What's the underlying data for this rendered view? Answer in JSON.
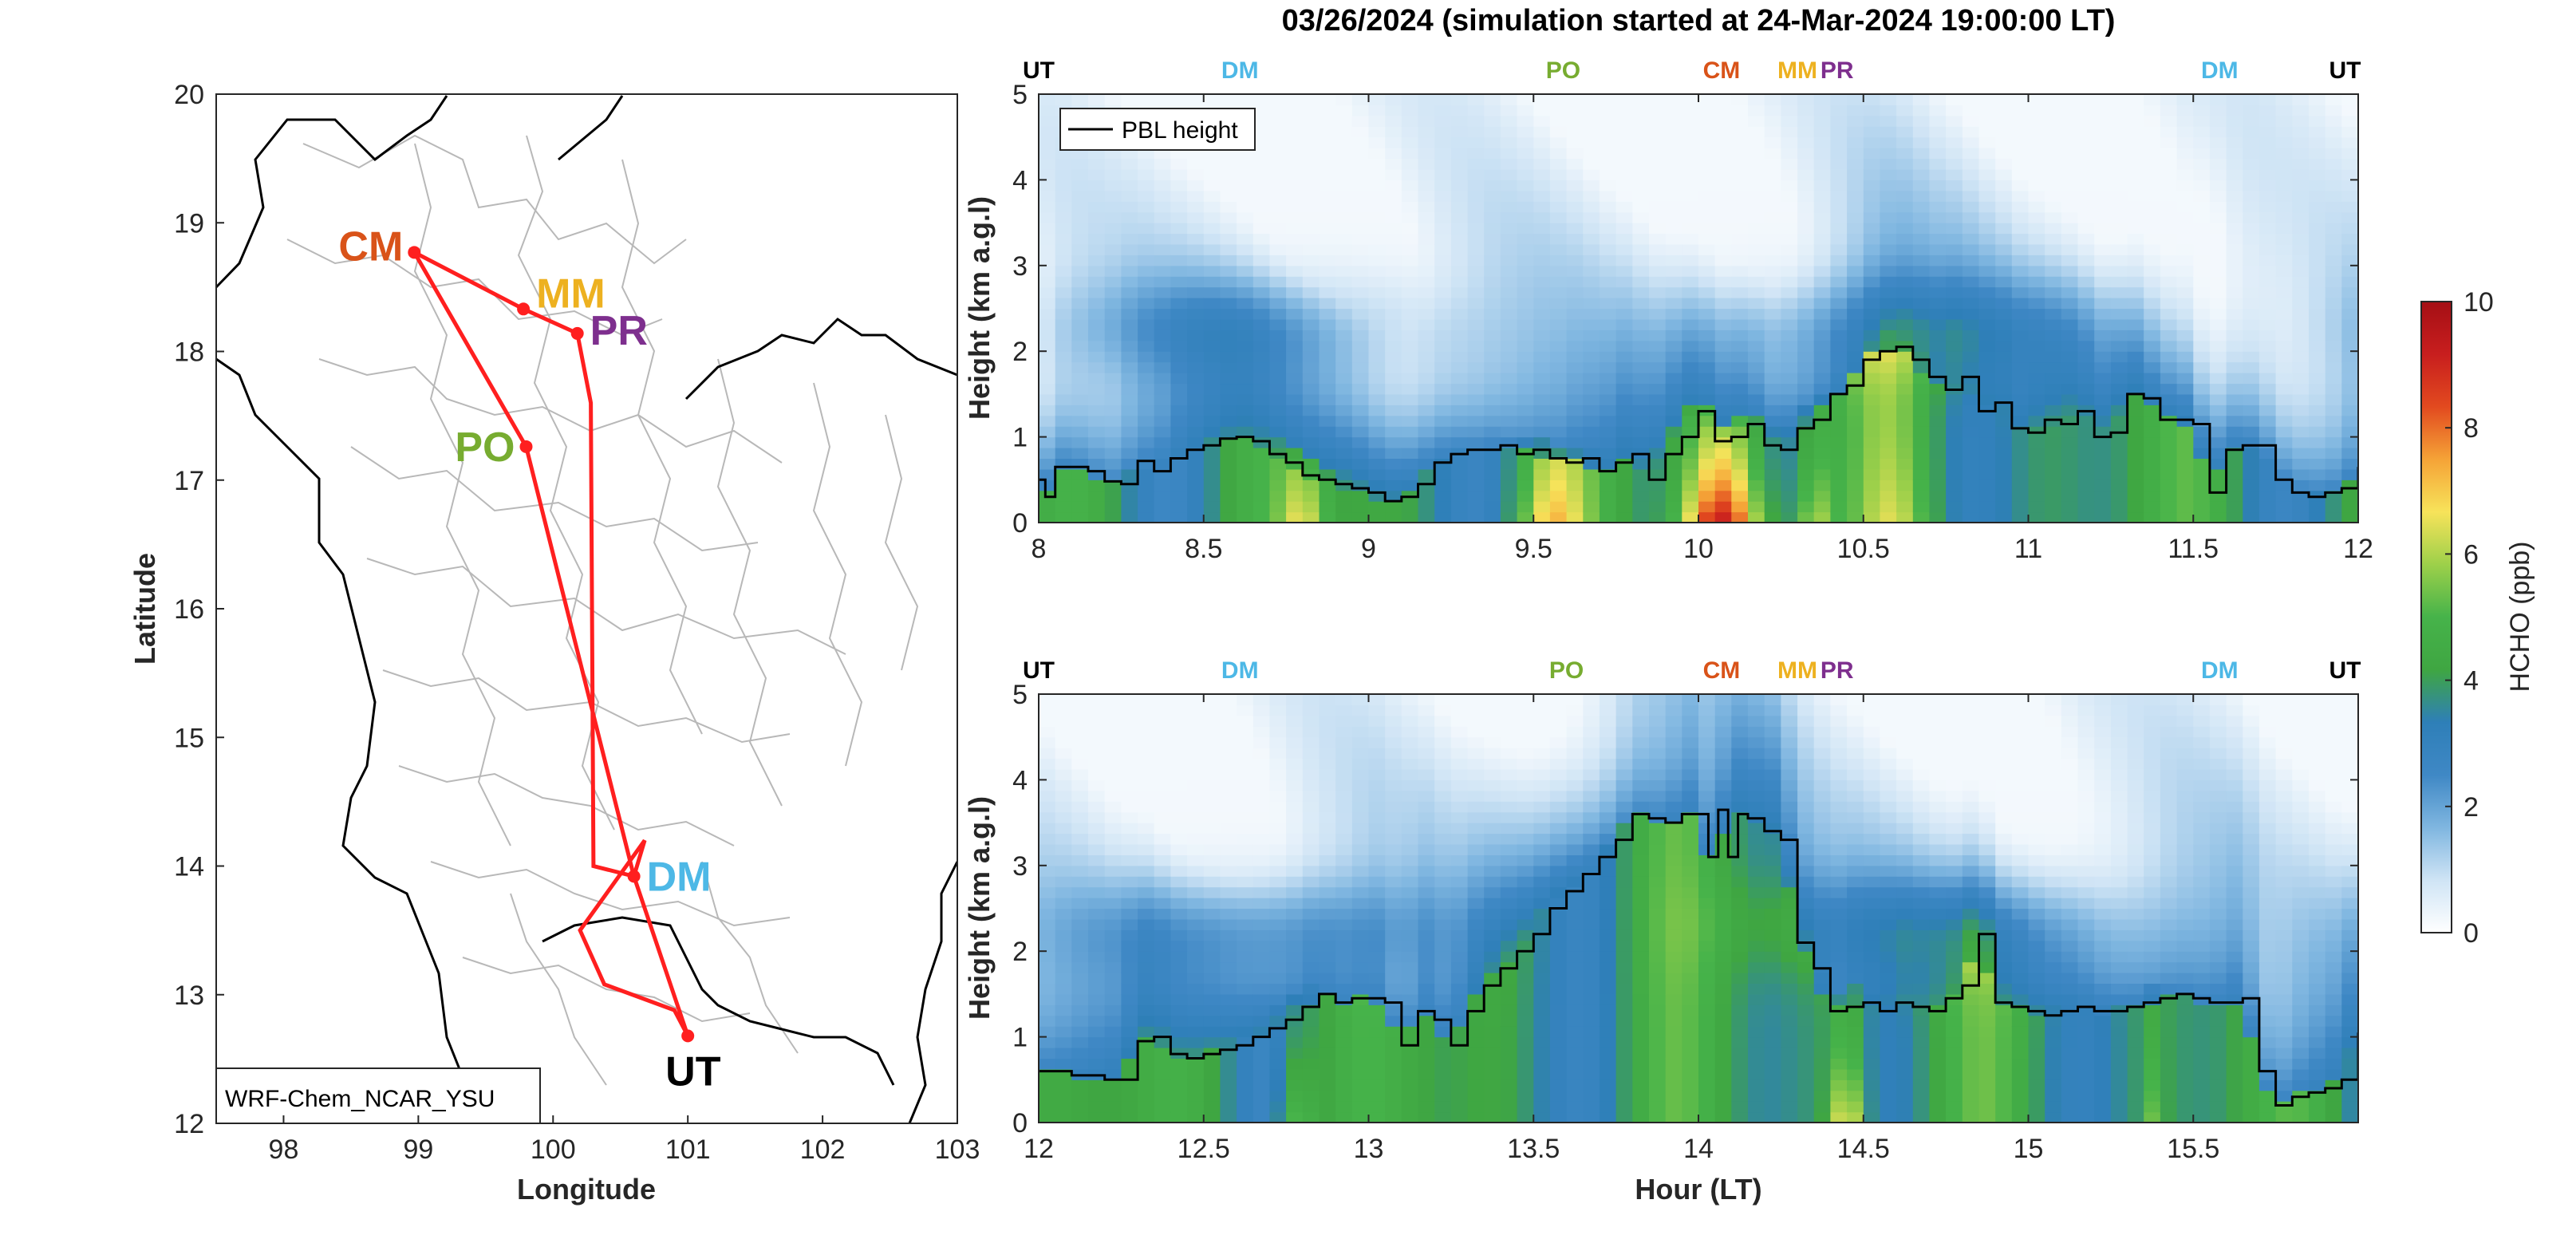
{
  "colors": {
    "route": "#ff1f1f",
    "UT": "#000000",
    "DM": "#4db8e6",
    "PO": "#77ac30",
    "CM": "#d95319",
    "MM": "#edb120",
    "PR": "#7e2f8e",
    "pbl_line": "#000000",
    "colormap": [
      "#ffffff",
      "#cfe4f5",
      "#7fb6e0",
      "#3f88c5",
      "#2e7fb8",
      "#3fa642",
      "#46b34a",
      "#9dd04a",
      "#f7e35a",
      "#f5a337",
      "#e24a1f",
      "#c81e1e",
      "#a50f15"
    ]
  },
  "chart_data": [
    {
      "type": "map",
      "xlabel": "Longitude",
      "ylabel": "Latitude",
      "xlim": [
        97.5,
        103
      ],
      "ylim": [
        12,
        20
      ],
      "xticks": [
        "98",
        "99",
        "100",
        "101",
        "102",
        "103"
      ],
      "yticks": [
        "12",
        "13",
        "14",
        "15",
        "16",
        "17",
        "18",
        "19",
        "20"
      ],
      "model_label": "WRF-Chem_NCAR_YSU",
      "sites": [
        {
          "code": "CM",
          "lon": 98.97,
          "lat": 18.77
        },
        {
          "code": "MM",
          "lon": 99.78,
          "lat": 18.33
        },
        {
          "code": "PR",
          "lon": 100.18,
          "lat": 18.14
        },
        {
          "code": "PO",
          "lon": 99.8,
          "lat": 17.26
        },
        {
          "code": "DM",
          "lon": 100.6,
          "lat": 13.92
        },
        {
          "code": "UT",
          "lon": 101.0,
          "lat": 12.68
        }
      ],
      "route": [
        [
          101.0,
          12.68
        ],
        [
          100.6,
          13.92
        ],
        [
          99.8,
          17.26
        ],
        [
          98.97,
          18.77
        ],
        [
          99.78,
          18.33
        ],
        [
          100.18,
          18.14
        ],
        [
          100.28,
          17.6
        ],
        [
          100.3,
          14.0
        ],
        [
          100.6,
          13.92
        ],
        [
          100.68,
          14.2
        ],
        [
          100.2,
          13.5
        ],
        [
          100.38,
          13.08
        ],
        [
          100.9,
          12.88
        ],
        [
          101.0,
          12.68
        ]
      ]
    },
    {
      "type": "heatmap",
      "title": "03/26/2024 (simulation started at 24-Mar-2024 19:00:00 LT)",
      "xlim": [
        8,
        12
      ],
      "ylim": [
        0,
        5
      ],
      "ylabel": "Height (km a.g.l)",
      "xticks": [
        "8",
        "8.5",
        "9",
        "9.5",
        "10",
        "10.5",
        "11",
        "11.5",
        "12"
      ],
      "yticks": [
        "0",
        "1",
        "2",
        "3",
        "4",
        "5"
      ],
      "legend": "PBL height",
      "site_markers": [
        {
          "code": "UT",
          "hour": 8.0
        },
        {
          "code": "DM",
          "hour": 8.61
        },
        {
          "code": "PO",
          "hour": 9.59
        },
        {
          "code": "CM",
          "hour": 10.07
        },
        {
          "code": "MM",
          "hour": 10.3
        },
        {
          "code": "PR",
          "hour": 10.42
        },
        {
          "code": "DM",
          "hour": 11.58
        },
        {
          "code": "UT",
          "hour": 11.96
        }
      ],
      "pbl_height": {
        "hour": [
          8.0,
          8.02,
          8.05,
          8.1,
          8.15,
          8.2,
          8.25,
          8.3,
          8.35,
          8.4,
          8.45,
          8.5,
          8.55,
          8.6,
          8.65,
          8.7,
          8.75,
          8.8,
          8.85,
          8.9,
          8.95,
          9.0,
          9.05,
          9.1,
          9.15,
          9.2,
          9.25,
          9.3,
          9.35,
          9.4,
          9.45,
          9.5,
          9.55,
          9.6,
          9.65,
          9.7,
          9.75,
          9.8,
          9.85,
          9.9,
          9.95,
          10.0,
          10.05,
          10.1,
          10.15,
          10.2,
          10.25,
          10.3,
          10.35,
          10.4,
          10.45,
          10.5,
          10.55,
          10.6,
          10.65,
          10.7,
          10.75,
          10.8,
          10.85,
          10.9,
          10.95,
          11.0,
          11.05,
          11.1,
          11.15,
          11.2,
          11.25,
          11.3,
          11.35,
          11.4,
          11.45,
          11.5,
          11.55,
          11.6,
          11.65,
          11.7,
          11.75,
          11.8,
          11.85,
          11.9,
          11.95,
          12.0
        ],
        "km": [
          0.5,
          0.3,
          0.65,
          0.65,
          0.6,
          0.48,
          0.45,
          0.72,
          0.6,
          0.75,
          0.85,
          0.9,
          0.98,
          1.0,
          0.95,
          0.8,
          0.7,
          0.55,
          0.5,
          0.45,
          0.4,
          0.35,
          0.25,
          0.3,
          0.45,
          0.7,
          0.8,
          0.85,
          0.85,
          0.9,
          0.8,
          0.85,
          0.75,
          0.7,
          0.75,
          0.6,
          0.7,
          0.8,
          0.5,
          0.8,
          1.0,
          1.3,
          0.95,
          1.0,
          1.15,
          0.9,
          0.85,
          1.1,
          1.2,
          1.5,
          1.6,
          1.9,
          2.0,
          2.05,
          1.9,
          1.7,
          1.55,
          1.7,
          1.3,
          1.4,
          1.1,
          1.05,
          1.2,
          1.15,
          1.3,
          1.0,
          1.05,
          1.5,
          1.45,
          1.2,
          1.2,
          1.15,
          0.35,
          0.85,
          0.9,
          0.9,
          0.5,
          0.35,
          0.3,
          0.35,
          0.4,
          0.65
        ]
      }
    },
    {
      "type": "heatmap",
      "xlim": [
        12,
        16
      ],
      "ylim": [
        0,
        5
      ],
      "xlabel": "Hour (LT)",
      "ylabel": "Height (km a.g.l)",
      "xticks": [
        "12",
        "12.5",
        "13",
        "13.5",
        "14",
        "14.5",
        "15",
        "15.5"
      ],
      "yticks": [
        "0",
        "1",
        "2",
        "3",
        "4",
        "5"
      ],
      "site_markers": [
        {
          "code": "UT",
          "hour": 12.0
        },
        {
          "code": "DM",
          "hour": 12.61
        },
        {
          "code": "PO",
          "hour": 13.6
        },
        {
          "code": "CM",
          "hour": 14.07
        },
        {
          "code": "MM",
          "hour": 14.3
        },
        {
          "code": "PR",
          "hour": 14.42
        },
        {
          "code": "DM",
          "hour": 15.58
        },
        {
          "code": "UT",
          "hour": 15.96
        }
      ],
      "pbl_height": {
        "hour": [
          12.0,
          12.05,
          12.1,
          12.15,
          12.2,
          12.25,
          12.3,
          12.35,
          12.4,
          12.45,
          12.5,
          12.55,
          12.6,
          12.65,
          12.7,
          12.75,
          12.8,
          12.85,
          12.9,
          12.95,
          13.0,
          13.05,
          13.1,
          13.15,
          13.2,
          13.25,
          13.3,
          13.35,
          13.4,
          13.45,
          13.5,
          13.55,
          13.6,
          13.65,
          13.7,
          13.75,
          13.8,
          13.85,
          13.9,
          13.95,
          14.0,
          14.03,
          14.06,
          14.09,
          14.12,
          14.15,
          14.2,
          14.25,
          14.3,
          14.35,
          14.4,
          14.45,
          14.5,
          14.55,
          14.6,
          14.65,
          14.7,
          14.75,
          14.8,
          14.85,
          14.9,
          14.95,
          15.0,
          15.05,
          15.1,
          15.15,
          15.2,
          15.25,
          15.3,
          15.35,
          15.4,
          15.45,
          15.5,
          15.55,
          15.6,
          15.65,
          15.7,
          15.75,
          15.8,
          15.85,
          15.9,
          15.95,
          16.0
        ],
        "km": [
          0.6,
          0.6,
          0.55,
          0.55,
          0.5,
          0.5,
          0.95,
          1.0,
          0.8,
          0.75,
          0.8,
          0.85,
          0.9,
          1.0,
          1.1,
          1.2,
          1.35,
          1.5,
          1.4,
          1.45,
          1.45,
          1.4,
          0.9,
          1.3,
          1.2,
          0.9,
          1.3,
          1.6,
          1.8,
          2.0,
          2.2,
          2.5,
          2.7,
          2.9,
          3.1,
          3.3,
          3.6,
          3.55,
          3.5,
          3.6,
          3.6,
          3.1,
          3.65,
          3.1,
          3.6,
          3.55,
          3.4,
          3.3,
          2.1,
          1.8,
          1.3,
          1.35,
          1.4,
          1.3,
          1.4,
          1.35,
          1.3,
          1.45,
          1.6,
          2.2,
          1.4,
          1.35,
          1.3,
          1.25,
          1.3,
          1.35,
          1.3,
          1.3,
          1.35,
          1.4,
          1.45,
          1.5,
          1.45,
          1.4,
          1.4,
          1.45,
          0.6,
          0.2,
          0.3,
          0.35,
          0.4,
          0.5,
          1.05
        ]
      }
    },
    {
      "type": "colorbar",
      "label": "HCHO (ppb)",
      "range": [
        0,
        10
      ],
      "ticks": [
        "0",
        "2",
        "4",
        "6",
        "8",
        "10"
      ]
    }
  ]
}
